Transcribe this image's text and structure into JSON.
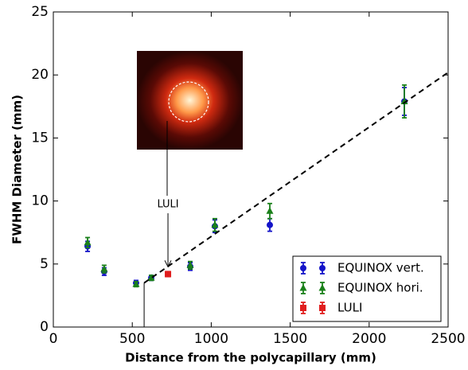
{
  "chart_data": {
    "type": "scatter",
    "xlabel": "Distance from the polycapillary (mm)",
    "ylabel": "FWHM Diameter (mm)",
    "xlim": [
      0,
      2500
    ],
    "xticks": [
      0,
      500,
      1000,
      1500,
      2000,
      2500
    ],
    "ylim": [
      0,
      25
    ],
    "yticks": [
      0,
      5,
      10,
      15,
      20,
      25
    ],
    "legend": "lower right",
    "annotation": "LULI",
    "series": [
      {
        "name": "EQUINOX vert.",
        "color": "#1414c8",
        "marker": "circle",
        "x": [
          217,
          322,
          524,
          620,
          867,
          1023,
          1371,
          2223
        ],
        "values": [
          6.4,
          4.4,
          3.5,
          3.9,
          4.8,
          8.0,
          8.1,
          17.9
        ],
        "errors": [
          0.4,
          0.3,
          0.2,
          0.2,
          0.3,
          0.5,
          0.5,
          1.1
        ]
      },
      {
        "name": "EQUINOX hori.",
        "color": "#1a801a",
        "marker": "triangle",
        "x": [
          217,
          322,
          524,
          620,
          867,
          1023,
          1371,
          2223
        ],
        "values": [
          6.7,
          4.6,
          3.4,
          3.9,
          4.9,
          8.1,
          9.2,
          17.9
        ],
        "errors": [
          0.4,
          0.3,
          0.2,
          0.2,
          0.3,
          0.5,
          0.6,
          1.3
        ]
      },
      {
        "name": "LULI",
        "color": "#e01e1e",
        "marker": "square",
        "x": [
          726
        ],
        "values": [
          4.2
        ],
        "errors": [
          0.2
        ]
      },
      {
        "color": "#000000",
        "linestyle": "dashed",
        "x": [
          575,
          2500
        ],
        "values": [
          3.5,
          20.2
        ]
      }
    ]
  }
}
